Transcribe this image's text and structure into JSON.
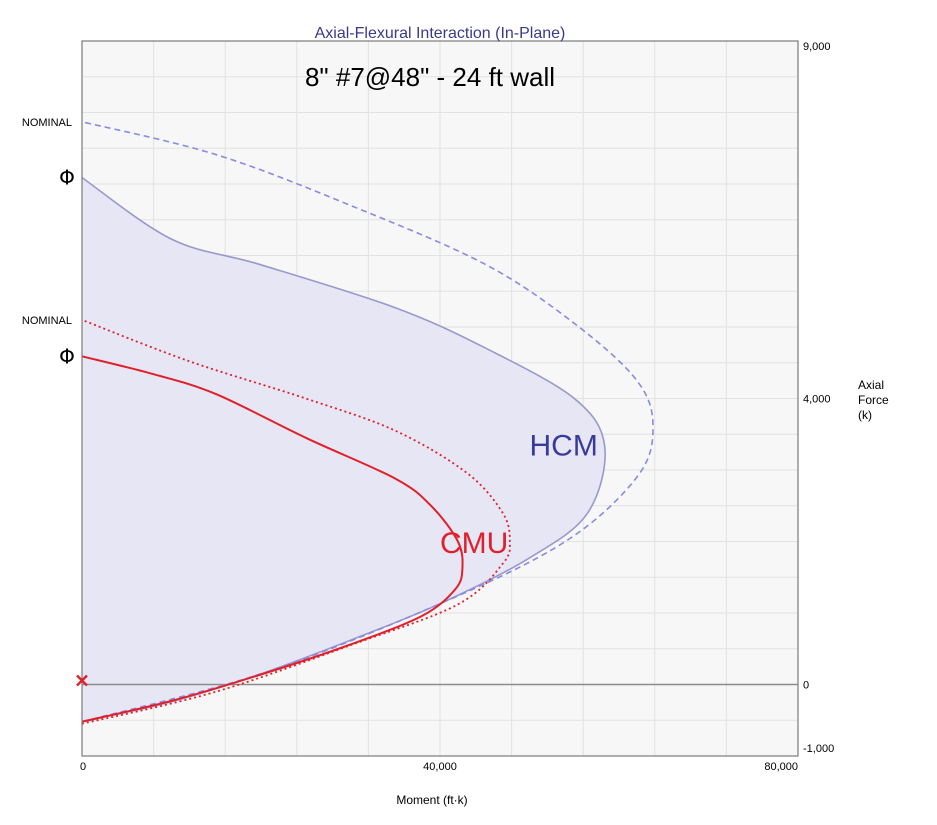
{
  "chart_data": {
    "type": "line",
    "title": "Axial-Flexural Interaction (In-Plane)",
    "subtitle": "8\" #7@48\" - 24 ft wall",
    "xlabel": "Moment (ft·k)",
    "ylabel_lines": [
      "Axial",
      "Force",
      "(k)"
    ],
    "xlim": [
      0,
      80000
    ],
    "ylim": [
      -1000,
      9000
    ],
    "x_ticks": [
      {
        "value": 0,
        "label": "0"
      },
      {
        "value": 40000,
        "label": "40,000"
      },
      {
        "value": 80000,
        "label": "80,000"
      }
    ],
    "y_ticks": [
      {
        "value": 9000,
        "label": "9,000"
      },
      {
        "value": 4000,
        "label": "4,000"
      },
      {
        "value": 0,
        "label": "0"
      },
      {
        "value": -1000,
        "label": "-1,000"
      }
    ],
    "grid": true,
    "zero_line": true,
    "series": [
      {
        "name": "HCM",
        "kind": "design",
        "style": "solid-filled",
        "color": "#9999cc",
        "label_color": "#3a3a9a",
        "points": [
          [
            0,
            -520
          ],
          [
            10000,
            -240
          ],
          [
            20000,
            150
          ],
          [
            30000,
            620
          ],
          [
            40000,
            1130
          ],
          [
            50000,
            1770
          ],
          [
            56500,
            2400
          ],
          [
            58400,
            3330
          ],
          [
            55000,
            4000
          ],
          [
            45000,
            4710
          ],
          [
            35000,
            5270
          ],
          [
            20000,
            5870
          ],
          [
            10000,
            6230
          ],
          [
            0,
            7090
          ]
        ]
      },
      {
        "name": "HCM",
        "kind": "nominal",
        "style": "dashed",
        "color": "#8a8ae0",
        "points": [
          [
            0,
            -520
          ],
          [
            20000,
            150
          ],
          [
            40000,
            1130
          ],
          [
            54000,
            2000
          ],
          [
            62000,
            2900
          ],
          [
            63800,
            3600
          ],
          [
            62000,
            4250
          ],
          [
            55000,
            5050
          ],
          [
            45000,
            5880
          ],
          [
            30000,
            6700
          ],
          [
            15000,
            7410
          ],
          [
            0,
            7870
          ]
        ]
      },
      {
        "name": "CMU",
        "kind": "design",
        "style": "solid",
        "color": "#e0202a",
        "label_color": "#e0202a",
        "points": [
          [
            0,
            -520
          ],
          [
            10000,
            -230
          ],
          [
            20000,
            140
          ],
          [
            30000,
            560
          ],
          [
            38000,
            960
          ],
          [
            41700,
            1330
          ],
          [
            42500,
            1620
          ],
          [
            42000,
            2000
          ],
          [
            39000,
            2500
          ],
          [
            35000,
            2880
          ],
          [
            25000,
            3450
          ],
          [
            15000,
            4060
          ],
          [
            8000,
            4340
          ],
          [
            0,
            4590
          ]
        ]
      },
      {
        "name": "CMU",
        "kind": "nominal",
        "style": "dotted",
        "color": "#e0202a",
        "points": [
          [
            0,
            -550
          ],
          [
            15000,
            -100
          ],
          [
            30000,
            550
          ],
          [
            42000,
            1120
          ],
          [
            47000,
            1690
          ],
          [
            47800,
            2000
          ],
          [
            47000,
            2400
          ],
          [
            43000,
            2960
          ],
          [
            35000,
            3550
          ],
          [
            25000,
            4000
          ],
          [
            12000,
            4520
          ],
          [
            0,
            5100
          ]
        ]
      }
    ],
    "annotations": [
      {
        "text": "HCM",
        "x": 50000,
        "y": 3200,
        "color": "#3a3a9a"
      },
      {
        "text": "CMU",
        "x": 40000,
        "y": 1840,
        "color": "#e0202a"
      }
    ],
    "side_markers": [
      {
        "text": "NOMINAL",
        "y": 7870,
        "kind": "label"
      },
      {
        "text": "Φ",
        "y": 7090,
        "kind": "phi"
      },
      {
        "text": "NOMINAL",
        "y": 5100,
        "kind": "label"
      },
      {
        "text": "Φ",
        "y": 4590,
        "kind": "phi"
      }
    ],
    "load_point": {
      "x": 0,
      "y": 0,
      "marker": "x",
      "color": "#e0202a"
    },
    "colors": {
      "plot_bg": "#f7f7f7",
      "grid": "#e2e2e2",
      "frame": "#7a7a7a",
      "hcm_fill": "#e6e6f5"
    }
  }
}
